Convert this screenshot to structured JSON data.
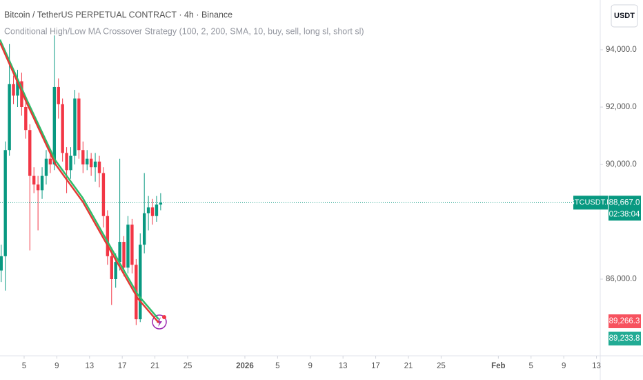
{
  "chart_data": {
    "type": "candlestick",
    "title": "Bitcoin / TetherUS PERPETUAL CONTRACT · 4h · Binance",
    "subtitle": "Conditional High/Low MA Crossover Strategy (100, 2, 200, SMA, 10, buy, sell, long sl, short sl)",
    "currency": "USDT",
    "symbol": "BTCUSDT.P",
    "countdown": "02:38:04",
    "last_price": {
      "value": 88667,
      "label": "88,667.0"
    },
    "ma_labels": [
      {
        "text": "89,266.3",
        "color": "#f7525f"
      },
      {
        "text": "89,233.8",
        "color": "#22ab94"
      }
    ],
    "up_color": "#089981",
    "down_color": "#f23645",
    "x": [
      2.2,
      2.7,
      3.2,
      3.7,
      4.2,
      4.7,
      5.2,
      5.7,
      6.2,
      6.7,
      7.2,
      7.7,
      8.2,
      8.7,
      9.2,
      9.7,
      10.2,
      10.7,
      11.2,
      11.7,
      12.2,
      12.7,
      13.2,
      13.7,
      14.2,
      14.7,
      15.2,
      15.7,
      16.2,
      16.7,
      17.2,
      17.7,
      18.2,
      18.7,
      19.2,
      19.7,
      20.2,
      20.7,
      21.2,
      21.7
    ],
    "open": [
      86300,
      86800,
      90500,
      92800,
      92400,
      92900,
      92000,
      91200,
      89600,
      89300,
      89100,
      89600,
      90200,
      90000,
      92700,
      92100,
      90400,
      89800,
      90300,
      92300,
      90500,
      90000,
      90200,
      89900,
      90100,
      89700,
      88200,
      86800,
      86000,
      86600,
      87300,
      86400,
      87900,
      86500,
      84600,
      87200,
      88300,
      88500,
      88200,
      88600
    ],
    "high": [
      87200,
      90800,
      94200,
      93100,
      93300,
      93200,
      92300,
      91400,
      89900,
      89600,
      89900,
      90500,
      90400,
      94500,
      93000,
      92300,
      90600,
      90600,
      92600,
      92500,
      90800,
      90500,
      90400,
      90400,
      90300,
      89900,
      88400,
      87100,
      86900,
      90200,
      87500,
      88200,
      88100,
      86700,
      87600,
      89700,
      88900,
      88800,
      88900,
      89000
    ],
    "low": [
      85900,
      85600,
      90300,
      92100,
      92000,
      91700,
      90900,
      87000,
      89000,
      87700,
      88800,
      89300,
      89700,
      89800,
      91600,
      90100,
      89000,
      89500,
      90000,
      90200,
      89700,
      89800,
      89600,
      89400,
      89200,
      87800,
      86500,
      85100,
      85700,
      86300,
      86100,
      86200,
      86200,
      84400,
      84500,
      86900,
      87700,
      87900,
      88000,
      88400
    ],
    "close": [
      86800,
      90500,
      92800,
      92400,
      92900,
      92000,
      91200,
      89600,
      89300,
      89100,
      89600,
      90200,
      90000,
      92700,
      92100,
      90400,
      89800,
      90300,
      92300,
      90500,
      90000,
      90200,
      89900,
      90100,
      89700,
      88200,
      86800,
      86000,
      86600,
      87300,
      86400,
      87900,
      86500,
      84600,
      87200,
      88300,
      88500,
      88200,
      88600,
      88667
    ],
    "series": [
      {
        "color": "#2ebd6b",
        "x": [
          2.05,
          5.42,
          8.8,
          12.17,
          15.55,
          18.92,
          21.46
        ],
        "values": [
          94350,
          92200,
          90150,
          88830,
          87130,
          85450,
          84600
        ]
      },
      {
        "color": "#e53935",
        "x": [
          2.05,
          5.42,
          8.8,
          12.17,
          15.55,
          18.92,
          21.46
        ],
        "values": [
          94250,
          92080,
          90020,
          88700,
          87000,
          85320,
          84480
        ]
      }
    ],
    "xlim": [
      2.05,
      75.46
    ],
    "ylim": [
      83325,
      95735
    ],
    "xticks": [
      {
        "value": 5,
        "label": "5"
      },
      {
        "value": 9,
        "label": "9"
      },
      {
        "value": 13,
        "label": "13"
      },
      {
        "value": 17,
        "label": "17"
      },
      {
        "value": 21,
        "label": "21"
      },
      {
        "value": 25,
        "label": "25"
      },
      {
        "value": 32,
        "label": "2026"
      },
      {
        "value": 36,
        "label": "5"
      },
      {
        "value": 40,
        "label": "9"
      },
      {
        "value": 44,
        "label": "13"
      },
      {
        "value": 48,
        "label": "17"
      },
      {
        "value": 52,
        "label": "21"
      },
      {
        "value": 56,
        "label": "25"
      },
      {
        "value": 63,
        "label": "Feb"
      },
      {
        "value": 67,
        "label": "5"
      },
      {
        "value": 71,
        "label": "9"
      },
      {
        "value": 75,
        "label": "13"
      }
    ],
    "yticks": [
      {
        "value": 94000,
        "label": "94,000.0"
      },
      {
        "value": 92000,
        "label": "92,000.0"
      },
      {
        "value": 90000,
        "label": "90,000.0"
      },
      {
        "value": 86000,
        "label": "86,000.0"
      }
    ]
  }
}
